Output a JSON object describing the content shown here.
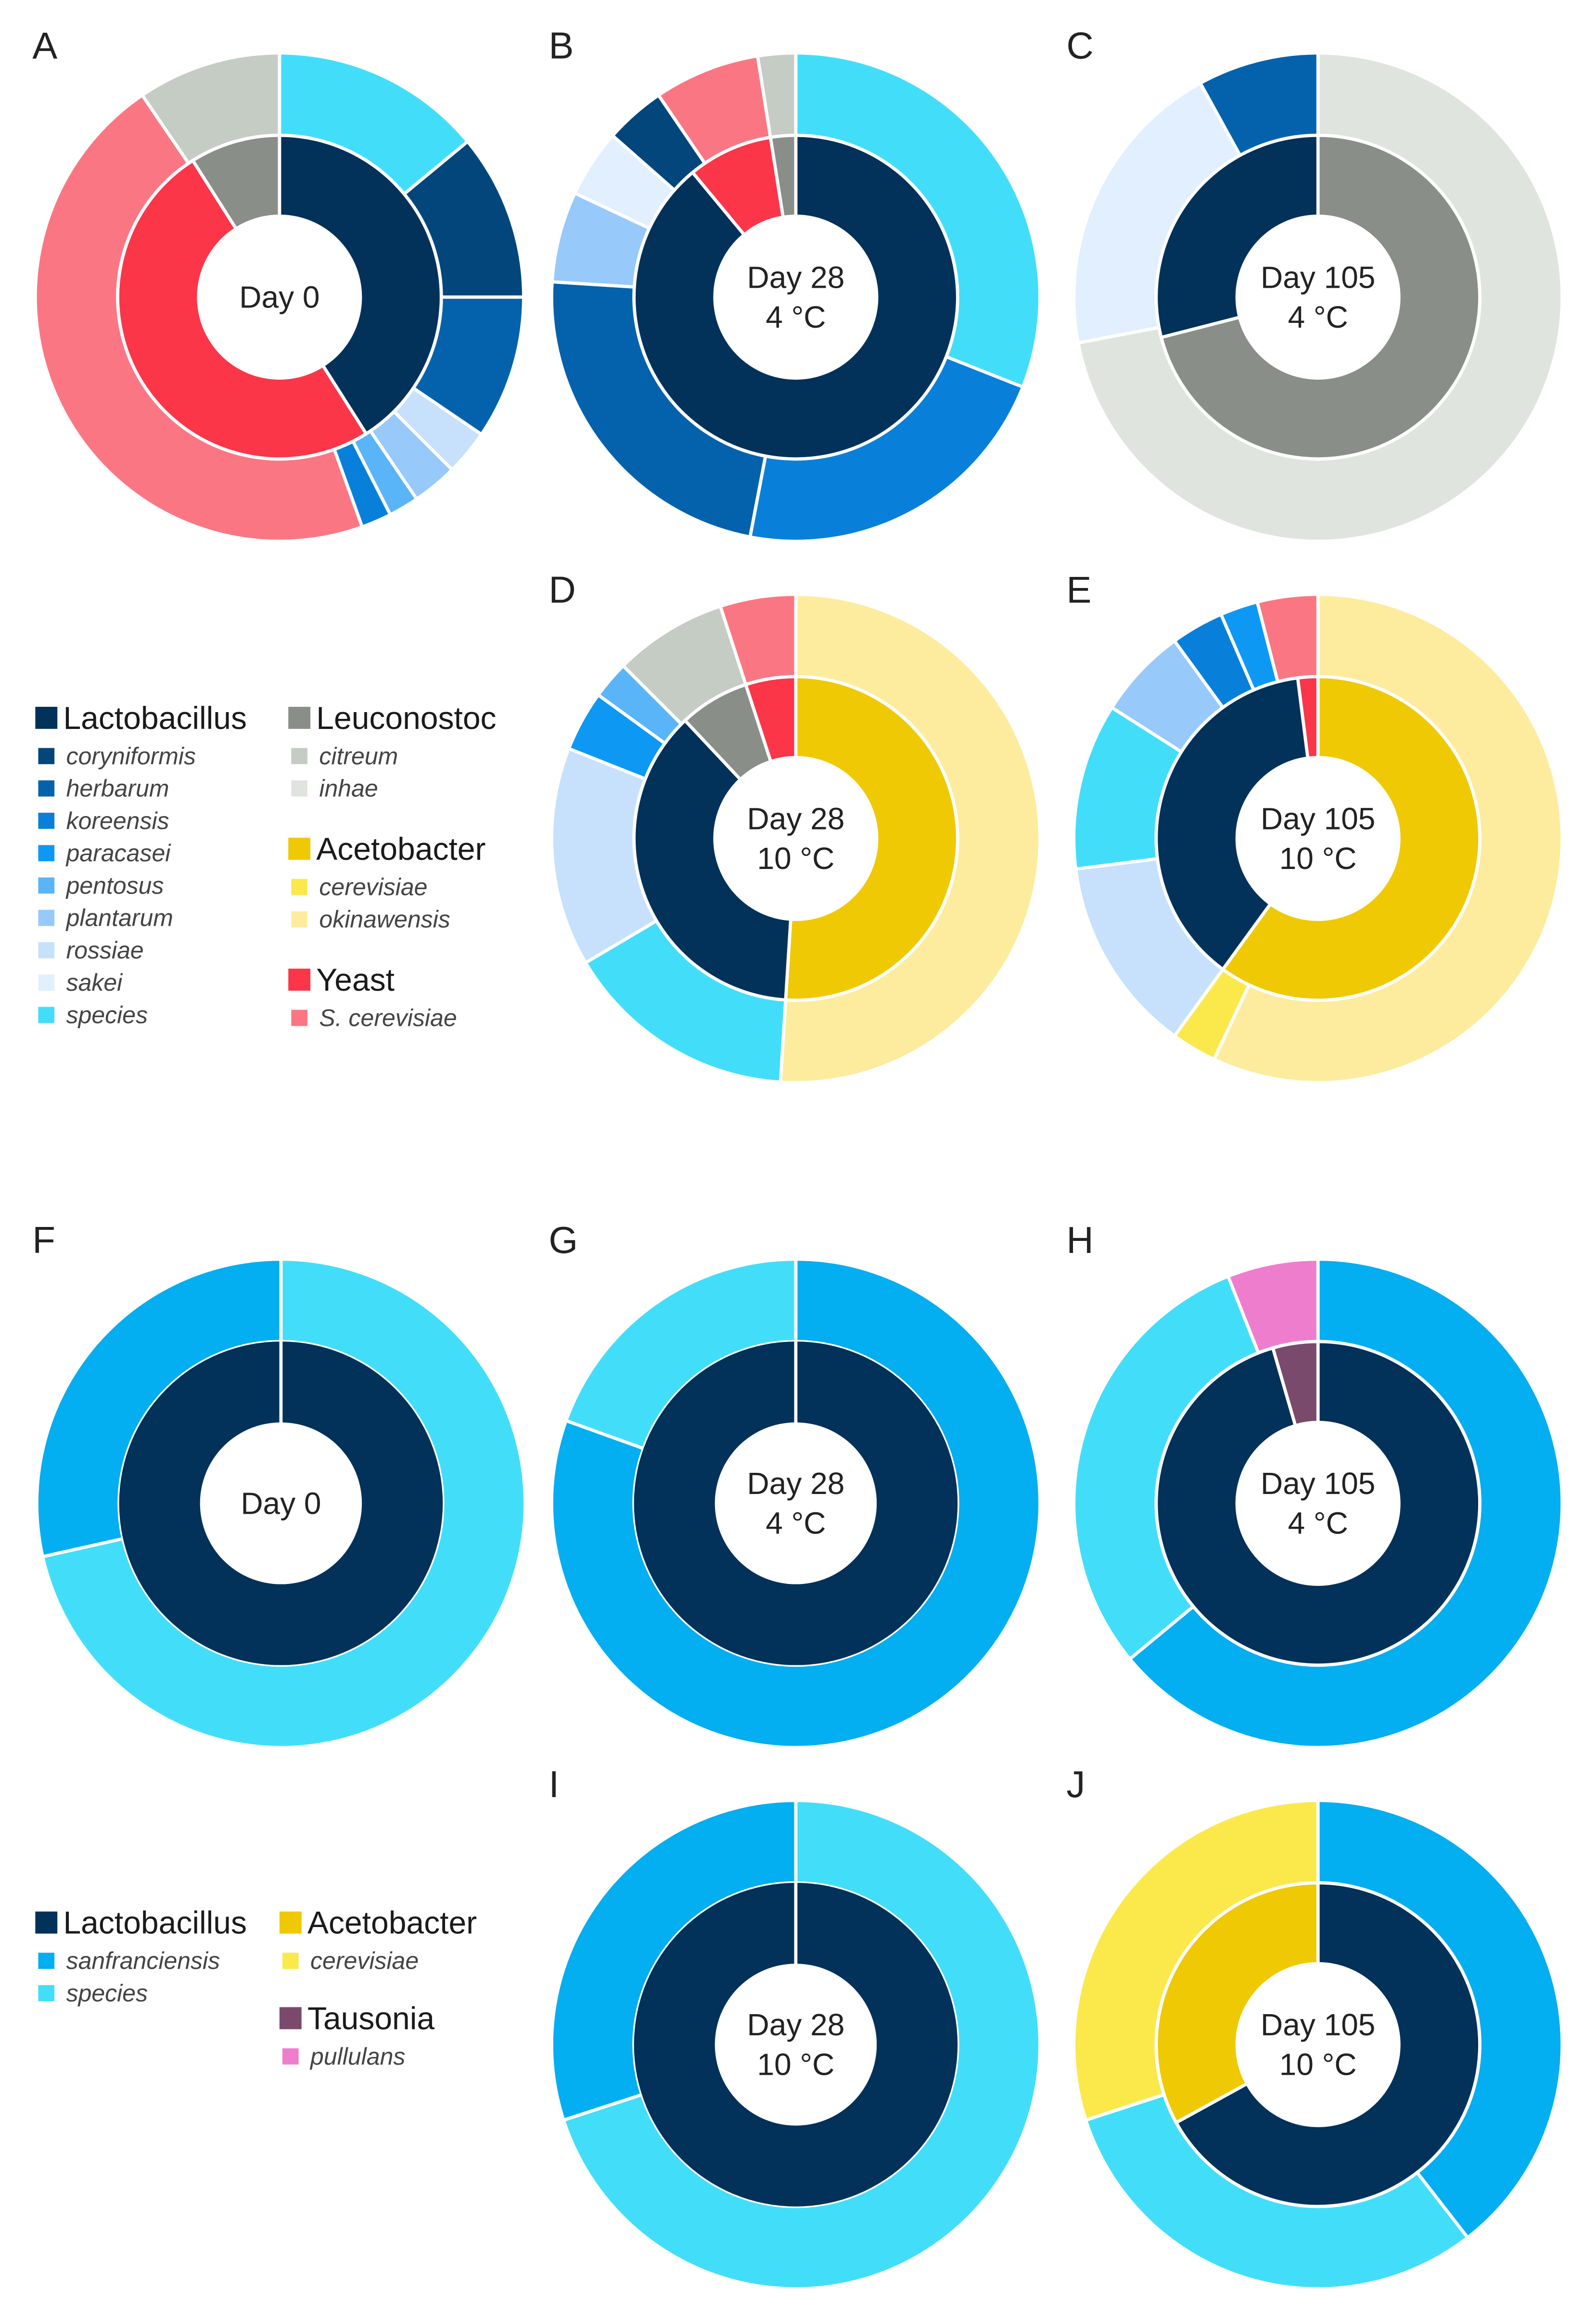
{
  "colors": {
    "Lactobacillus": "#02315a",
    "coryniformis": "#03467c",
    "herbarum": "#0462ad",
    "koreensis": "#0880da",
    "paracasei": "#0d99f3",
    "pentosus": "#5ab4f8",
    "plantarum": "#97c9fb",
    "rossiae": "#c7e1fc",
    "sakei": "#e1efff",
    "species": "#42def9",
    "sanfranciensis": "#03aef1",
    "Leuconostoc": "#8a8e88",
    "citreum": "#c5ccc4",
    "inhae": "#dfe5de",
    "Acetobacter": "#efc903",
    "cerevisiae": "#fbe94b",
    "okinawensis": "#fdec9e",
    "Yeast": "#fa3648",
    "S. cerevisiae": "#fb7683",
    "Tausonia": "#7a4a6c",
    "pullulans": "#ef7dcd"
  },
  "legend_top": [
    {
      "genus": "Lactobacillus",
      "species": [
        "coryniformis",
        "herbarum",
        "koreensis",
        "paracasei",
        "pentosus",
        "plantarum",
        "rossiae",
        "sakei",
        "species"
      ]
    },
    {
      "genus": "Leuconostoc",
      "species": [
        "citreum",
        "inhae"
      ]
    },
    {
      "genus": "Acetobacter",
      "species": [
        "cerevisiae",
        "okinawensis"
      ]
    },
    {
      "genus": "Yeast",
      "species": [
        "S. cerevisiae"
      ]
    }
  ],
  "legend_bottom": [
    {
      "genus": "Lactobacillus",
      "species": [
        "sanfranciensis",
        "species"
      ]
    },
    {
      "genus": "Acetobacter",
      "species": [
        "cerevisiae"
      ]
    },
    {
      "genus": "Tausonia",
      "species": [
        "pullulans"
      ]
    }
  ],
  "chart_data": [
    {
      "type": "pie",
      "panel": "A",
      "center": [
        "Day 0"
      ],
      "inner": [
        {
          "name": "Lactobacillus",
          "value": 41
        },
        {
          "name": "Yeast",
          "value": 50
        },
        {
          "name": "Leuconostoc",
          "value": 9
        }
      ],
      "outer": [
        {
          "name": "species",
          "value": 14
        },
        {
          "name": "coryniformis",
          "value": 11
        },
        {
          "name": "herbarum",
          "value": 9.5
        },
        {
          "name": "rossiae",
          "value": 3
        },
        {
          "name": "plantarum",
          "value": 3
        },
        {
          "name": "pentosus",
          "value": 2
        },
        {
          "name": "koreensis",
          "value": 2
        },
        {
          "name": "S. cerevisiae",
          "value": 46
        },
        {
          "name": "citreum",
          "value": 9.5
        }
      ]
    },
    {
      "type": "pie",
      "panel": "B",
      "center": [
        "Day 28",
        "4 °C"
      ],
      "inner": [
        {
          "name": "Lactobacillus",
          "value": 89
        },
        {
          "name": "Yeast",
          "value": 8.5
        },
        {
          "name": "Leuconostoc",
          "value": 2.5
        }
      ],
      "outer": [
        {
          "name": "species",
          "value": 31
        },
        {
          "name": "koreensis",
          "value": 22
        },
        {
          "name": "herbarum",
          "value": 23
        },
        {
          "name": "plantarum",
          "value": 6
        },
        {
          "name": "sakei",
          "value": 4.5
        },
        {
          "name": "coryniformis",
          "value": 4
        },
        {
          "name": "S. cerevisiae",
          "value": 7
        },
        {
          "name": "citreum",
          "value": 2.5
        }
      ]
    },
    {
      "type": "pie",
      "panel": "C",
      "center": [
        "Day 105",
        "4 °C"
      ],
      "inner": [
        {
          "name": "Leuconostoc",
          "value": 71
        },
        {
          "name": "Lactobacillus",
          "value": 29
        }
      ],
      "outer": [
        {
          "name": "inhae",
          "value": 72
        },
        {
          "name": "sakei",
          "value": 20
        },
        {
          "name": "herbarum",
          "value": 8
        }
      ]
    },
    {
      "type": "pie",
      "panel": "D",
      "center": [
        "Day 28",
        "10 °C"
      ],
      "inner": [
        {
          "name": "Acetobacter",
          "value": 51
        },
        {
          "name": "Lactobacillus",
          "value": 37
        },
        {
          "name": "Leuconostoc",
          "value": 7
        },
        {
          "name": "Yeast",
          "value": 5
        }
      ],
      "outer": [
        {
          "name": "okinawensis",
          "value": 51
        },
        {
          "name": "species",
          "value": 15.5
        },
        {
          "name": "rossiae",
          "value": 14.5
        },
        {
          "name": "paracasei",
          "value": 4
        },
        {
          "name": "pentosus",
          "value": 2.5
        },
        {
          "name": "citreum",
          "value": 7.5
        },
        {
          "name": "S. cerevisiae",
          "value": 5
        }
      ]
    },
    {
      "type": "pie",
      "panel": "E",
      "center": [
        "Day 105",
        "10 °C"
      ],
      "inner": [
        {
          "name": "Acetobacter",
          "value": 60
        },
        {
          "name": "Lactobacillus",
          "value": 38
        },
        {
          "name": "Yeast",
          "value": 2
        }
      ],
      "outer": [
        {
          "name": "okinawensis",
          "value": 57
        },
        {
          "name": "cerevisiae",
          "value": 3
        },
        {
          "name": "rossiae",
          "value": 13
        },
        {
          "name": "species",
          "value": 11
        },
        {
          "name": "plantarum",
          "value": 6
        },
        {
          "name": "koreensis",
          "value": 3.5
        },
        {
          "name": "paracasei",
          "value": 2.5
        },
        {
          "name": "S. cerevisiae",
          "value": 4
        }
      ]
    },
    {
      "type": "pie",
      "panel": "F",
      "center": [
        "Day 0"
      ],
      "inner": [
        {
          "name": "Lactobacillus",
          "value": 100
        }
      ],
      "outer": [
        {
          "name": "species",
          "value": 71.5
        },
        {
          "name": "sanfranciensis",
          "value": 28.5
        }
      ]
    },
    {
      "type": "pie",
      "panel": "G",
      "center": [
        "Day 28",
        "4 °C"
      ],
      "inner": [
        {
          "name": "Lactobacillus",
          "value": 100
        }
      ],
      "outer": [
        {
          "name": "sanfranciensis",
          "value": 80.5
        },
        {
          "name": "species",
          "value": 19.5
        }
      ]
    },
    {
      "type": "pie",
      "panel": "H",
      "center": [
        "Day 105",
        "4 °C"
      ],
      "inner": [
        {
          "name": "Lactobacillus",
          "value": 95.5
        },
        {
          "name": "Tausonia",
          "value": 4.5
        }
      ],
      "outer": [
        {
          "name": "sanfranciensis",
          "value": 64
        },
        {
          "name": "species",
          "value": 30
        },
        {
          "name": "pullulans",
          "value": 6
        }
      ]
    },
    {
      "type": "pie",
      "panel": "I",
      "center": [
        "Day 28",
        "10 °C"
      ],
      "inner": [
        {
          "name": "Lactobacillus",
          "value": 100
        }
      ],
      "outer": [
        {
          "name": "species",
          "value": 70
        },
        {
          "name": "sanfranciensis",
          "value": 30
        }
      ]
    },
    {
      "type": "pie",
      "panel": "J",
      "center": [
        "Day 105",
        "10 °C"
      ],
      "inner": [
        {
          "name": "Lactobacillus",
          "value": 67
        },
        {
          "name": "Acetobacter",
          "value": 33
        }
      ],
      "outer": [
        {
          "name": "sanfranciensis",
          "value": 39.5
        },
        {
          "name": "species",
          "value": 30.5
        },
        {
          "name": "cerevisiae",
          "value": 30
        }
      ]
    }
  ]
}
